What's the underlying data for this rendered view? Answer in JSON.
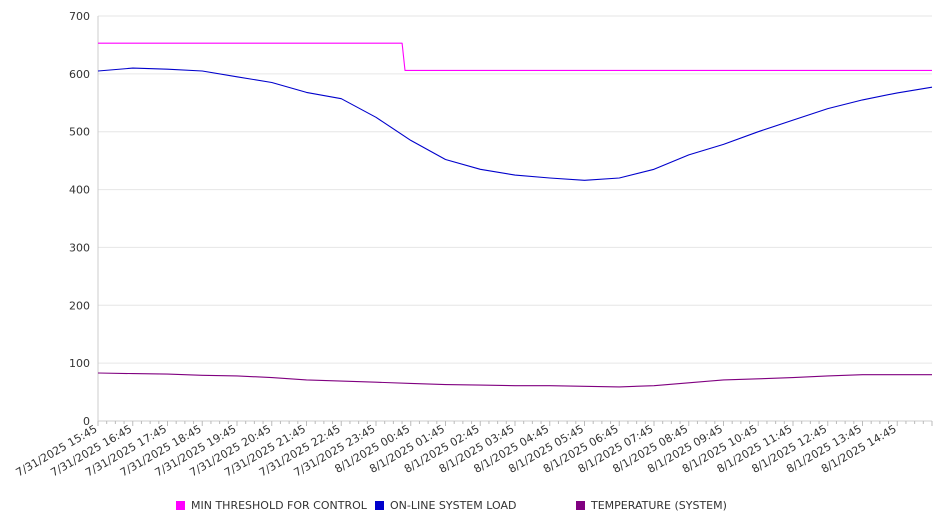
{
  "chart_data": {
    "type": "line",
    "ylim": [
      0,
      700
    ],
    "y_ticks": [
      "0",
      "100",
      "200",
      "300",
      "400",
      "500",
      "600",
      "700"
    ],
    "x_tick_labels": [
      "7/31/2025 15:45",
      "7/31/2025 16:45",
      "7/31/2025 17:45",
      "7/31/2025 18:45",
      "7/31/2025 19:45",
      "7/31/2025 20:45",
      "7/31/2025 21:45",
      "7/31/2025 22:45",
      "7/31/2025 23:45",
      "8/1/2025 00:45",
      "8/1/2025 01:45",
      "8/1/2025 02:45",
      "8/1/2025 03:45",
      "8/1/2025 04:45",
      "8/1/2025 05:45",
      "8/1/2025 06:45",
      "8/1/2025 07:45",
      "8/1/2025 08:45",
      "8/1/2025 09:45",
      "8/1/2025 10:45",
      "8/1/2025 11:45",
      "8/1/2025 12:45",
      "8/1/2025 13:45",
      "8/1/2025 14:45"
    ],
    "grid": true,
    "legend_position": "bottom",
    "series": [
      {
        "name": "MIN THRESHOLD FOR CONTROL",
        "color": "#ff00ff",
        "x": [
          "7/31/2025 15:45",
          "7/31/2025 16:45",
          "7/31/2025 17:45",
          "7/31/2025 18:45",
          "7/31/2025 19:45",
          "7/31/2025 20:45",
          "7/31/2025 21:45",
          "7/31/2025 22:45",
          "7/31/2025 23:45",
          "8/1/2025 00:30",
          "8/1/2025 00:35",
          "8/1/2025 01:45",
          "8/1/2025 02:45",
          "8/1/2025 03:45",
          "8/1/2025 04:45",
          "8/1/2025 05:45",
          "8/1/2025 06:45",
          "8/1/2025 07:45",
          "8/1/2025 08:45",
          "8/1/2025 09:45",
          "8/1/2025 10:45",
          "8/1/2025 11:45",
          "8/1/2025 12:45",
          "8/1/2025 13:45",
          "8/1/2025 14:45",
          "8/1/2025 15:45"
        ],
        "values": [
          653,
          653,
          653,
          653,
          653,
          653,
          653,
          653,
          653,
          653,
          606,
          606,
          606,
          606,
          606,
          606,
          606,
          606,
          606,
          606,
          606,
          606,
          606,
          606,
          606,
          606
        ]
      },
      {
        "name": "ON-LINE SYSTEM LOAD",
        "color": "#0000cc",
        "x": [
          "7/31/2025 15:45",
          "7/31/2025 16:45",
          "7/31/2025 17:45",
          "7/31/2025 18:45",
          "7/31/2025 19:45",
          "7/31/2025 20:45",
          "7/31/2025 21:45",
          "7/31/2025 22:45",
          "7/31/2025 23:45",
          "8/1/2025 00:45",
          "8/1/2025 01:45",
          "8/1/2025 02:45",
          "8/1/2025 03:45",
          "8/1/2025 04:45",
          "8/1/2025 05:45",
          "8/1/2025 06:45",
          "8/1/2025 07:45",
          "8/1/2025 08:45",
          "8/1/2025 09:45",
          "8/1/2025 10:45",
          "8/1/2025 11:45",
          "8/1/2025 12:45",
          "8/1/2025 13:45",
          "8/1/2025 14:45",
          "8/1/2025 15:45"
        ],
        "values": [
          605,
          610,
          608,
          605,
          595,
          585,
          568,
          557,
          525,
          485,
          452,
          435,
          425,
          420,
          416,
          420,
          435,
          460,
          478,
          500,
          520,
          540,
          555,
          567,
          577
        ]
      },
      {
        "name": "TEMPERATURE (SYSTEM)",
        "color": "#800080",
        "x": [
          "7/31/2025 15:45",
          "7/31/2025 16:45",
          "7/31/2025 17:45",
          "7/31/2025 18:45",
          "7/31/2025 19:45",
          "7/31/2025 20:45",
          "7/31/2025 21:45",
          "7/31/2025 22:45",
          "7/31/2025 23:45",
          "8/1/2025 00:45",
          "8/1/2025 01:45",
          "8/1/2025 02:45",
          "8/1/2025 03:45",
          "8/1/2025 04:45",
          "8/1/2025 05:45",
          "8/1/2025 06:45",
          "8/1/2025 07:45",
          "8/1/2025 08:45",
          "8/1/2025 09:45",
          "8/1/2025 10:45",
          "8/1/2025 11:45",
          "8/1/2025 12:45",
          "8/1/2025 13:45",
          "8/1/2025 14:45",
          "8/1/2025 15:45"
        ],
        "values": [
          83,
          82,
          81,
          79,
          78,
          75,
          71,
          69,
          67,
          65,
          63,
          62,
          61,
          61,
          60,
          59,
          61,
          66,
          71,
          73,
          75,
          78,
          80,
          80,
          80
        ]
      }
    ]
  }
}
